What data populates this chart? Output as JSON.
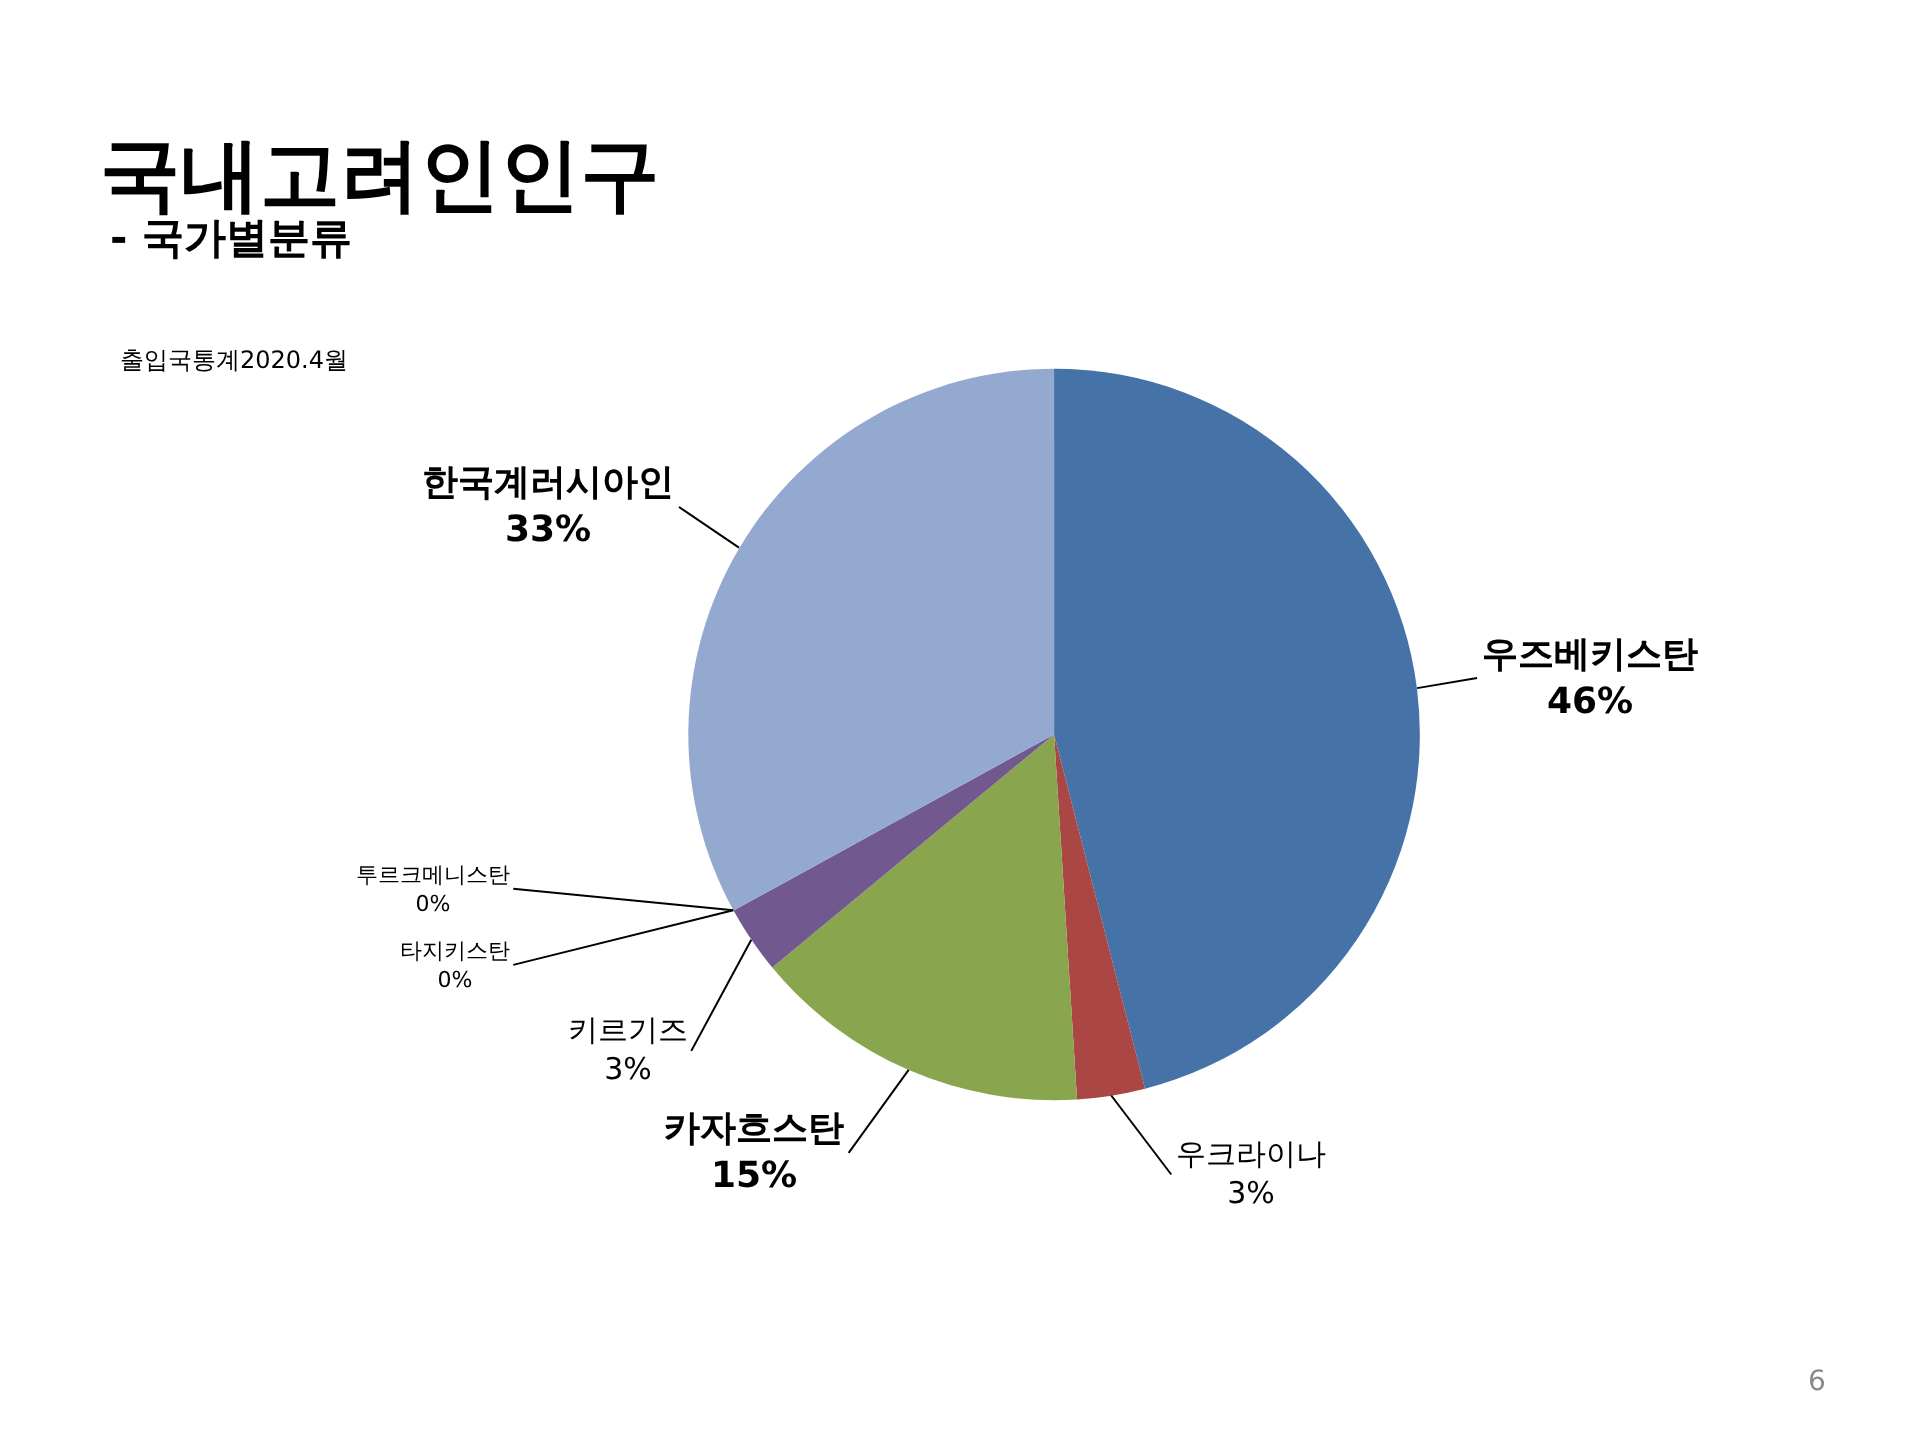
{
  "chart_data": {
    "type": "pie",
    "title": "국내고려인인구",
    "subtitle": "- 국가별분류",
    "categories": [
      "우즈베키스탄",
      "우크라이나",
      "카자흐스탄",
      "키르기즈",
      "타지키스탄",
      "투르크메니스탄",
      "한국계러시아인"
    ],
    "values": [
      46,
      3,
      15,
      3,
      0,
      0,
      33
    ],
    "value_labels": [
      "46%",
      "3%",
      "15%",
      "3%",
      "0%",
      "0%",
      "33%"
    ],
    "colors": [
      "#4572a7",
      "#aa4643",
      "#89a54e",
      "#71588f",
      "#4198af",
      "#db843d",
      "#93a9cf"
    ],
    "annotations": [
      "출입국통계2020.4월",
      "6"
    ],
    "legend": false
  }
}
